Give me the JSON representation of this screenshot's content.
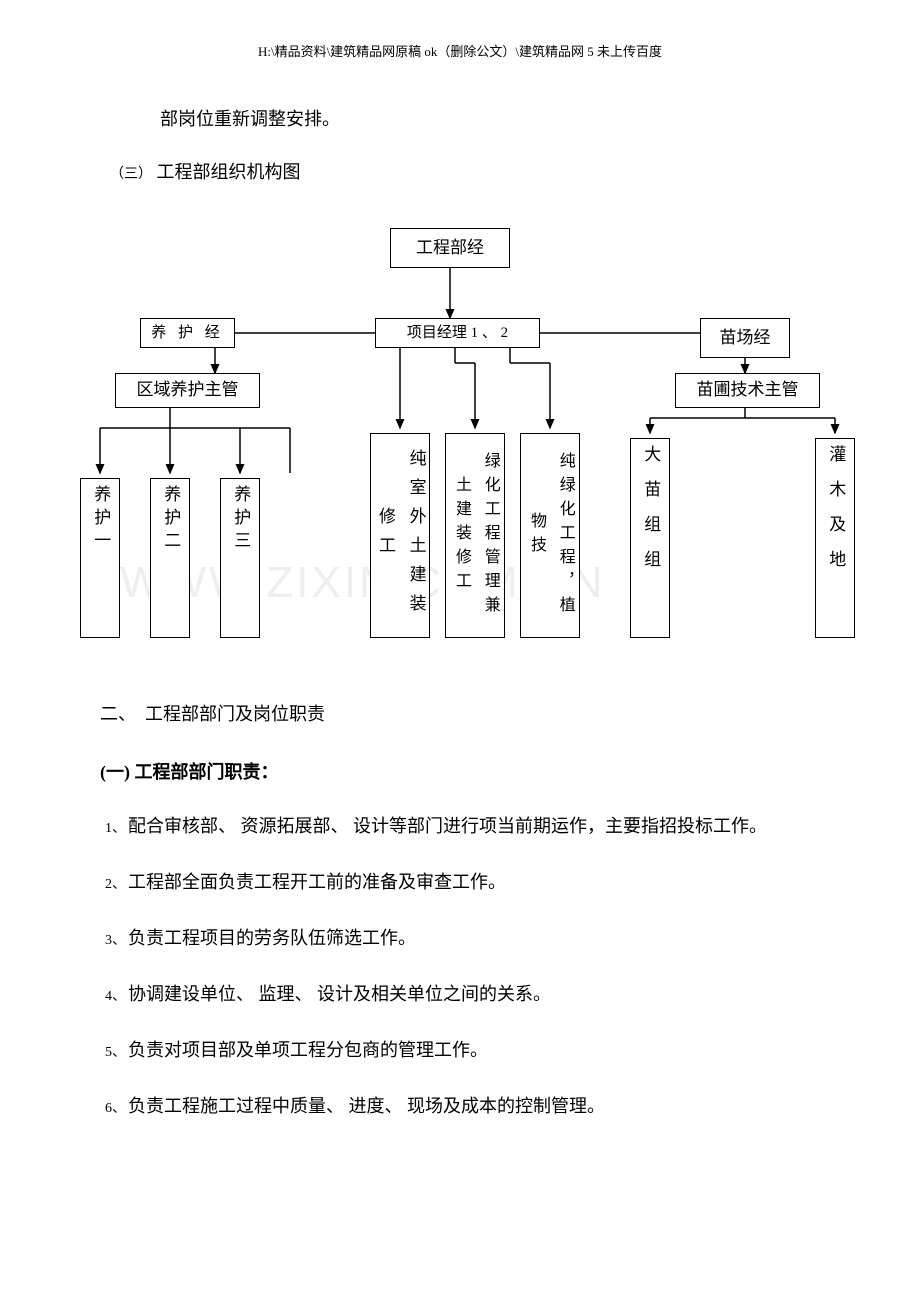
{
  "header_path": "H:\\精品资料\\建筑精品网原稿 ok（删除公文）\\建筑精品网 5 未上传百度",
  "line1": "部岗位重新调整安排。",
  "sub_heading_small": "（三）",
  "sub_heading_text": "工程部组织机构图",
  "chart": {
    "top": "工程部经",
    "l2_left": "养 护 经",
    "l2_mid": "项目经理 1 、 2",
    "l2_right": "苗场经",
    "l3_left": "区域养护主管",
    "l3_right": "苗圃技术主管",
    "leaf1": "养护一",
    "leaf2": "养护二",
    "leaf3": "养护三",
    "leaf4": "纯室外土建装修工",
    "leaf5": "绿化工程管理兼土建装修工",
    "leaf6": "纯绿化工程，植物技",
    "leaf7": "大苗组组",
    "leaf8": "灌木及地"
  },
  "watermark": "WWW.ZIXIN.COM.CN",
  "sec2_title": "二、　工程部部门及岗位职责",
  "sub_title_bold": "(一) 工程部部门职责：",
  "items": [
    {
      "num": "1、",
      "text": "配合审核部、 资源拓展部、 设计等部门进行项当前期运作，主要指招投标工作。"
    },
    {
      "num": "2、",
      "text": "工程部全面负责工程开工前的准备及审查工作。"
    },
    {
      "num": "3、",
      "text": "负责工程项目的劳务队伍筛选工作。"
    },
    {
      "num": "4、",
      "text": "协调建设单位、 监理、 设计及相关单位之间的关系。"
    },
    {
      "num": "5、",
      "text": "负责对项目部及单项工程分包商的管理工作。"
    },
    {
      "num": "6、",
      "text": "负责工程施工过程中质量、 进度、 现场及成本的控制管理。"
    }
  ]
}
